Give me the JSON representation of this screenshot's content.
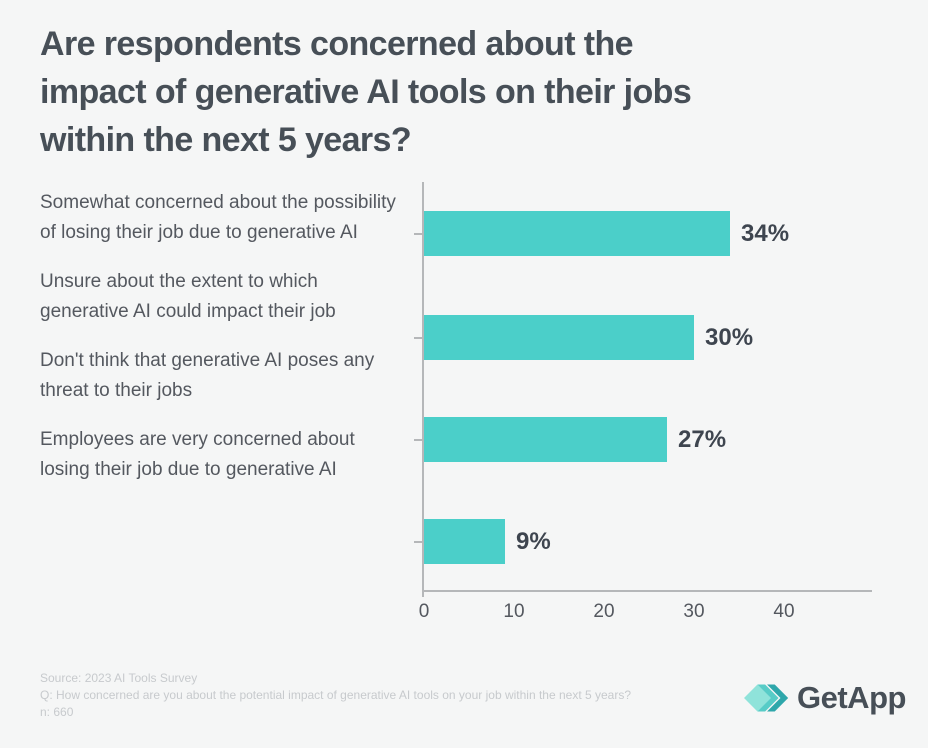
{
  "title_lines": [
    "Are respondents concerned about the",
    "impact of generative AI tools on their jobs",
    "within the next 5 years?"
  ],
  "chart_data": {
    "type": "bar",
    "orientation": "horizontal",
    "categories": [
      "Somewhat concerned about the possibility of losing their job due to generative AI",
      "Unsure about the extent to which generative AI could impact their job",
      "Don't think that generative AI poses any threat to their jobs",
      "Employees are very concerned about losing their job due to generative AI"
    ],
    "values": [
      34,
      30,
      27,
      9
    ],
    "value_labels": [
      "34%",
      "30%",
      "27%",
      "9%"
    ],
    "xlim": [
      0,
      50
    ],
    "x_ticks": [
      0,
      10,
      20,
      30,
      40
    ],
    "grid": false,
    "legend": "none",
    "xlabel": "",
    "ylabel": ""
  },
  "footer": {
    "source": "Source: 2023 AI Tools Survey",
    "question": "Q: How concerned are you about the potential impact of generative AI tools on your job within the next 5 years?",
    "n": "n: 660"
  },
  "logo": {
    "text": "GetApp"
  },
  "colors": {
    "background": "#F5F6F6",
    "title": "#474F57",
    "label": "#54585F",
    "bar": "#4BCFC9",
    "value": "#3E454F",
    "axis": "#B5B7B9",
    "footer": "#C7CACD",
    "logo_light": "#8FE3DA",
    "logo_mid": "#49C8C2",
    "logo_dark": "#1C9FA4"
  }
}
